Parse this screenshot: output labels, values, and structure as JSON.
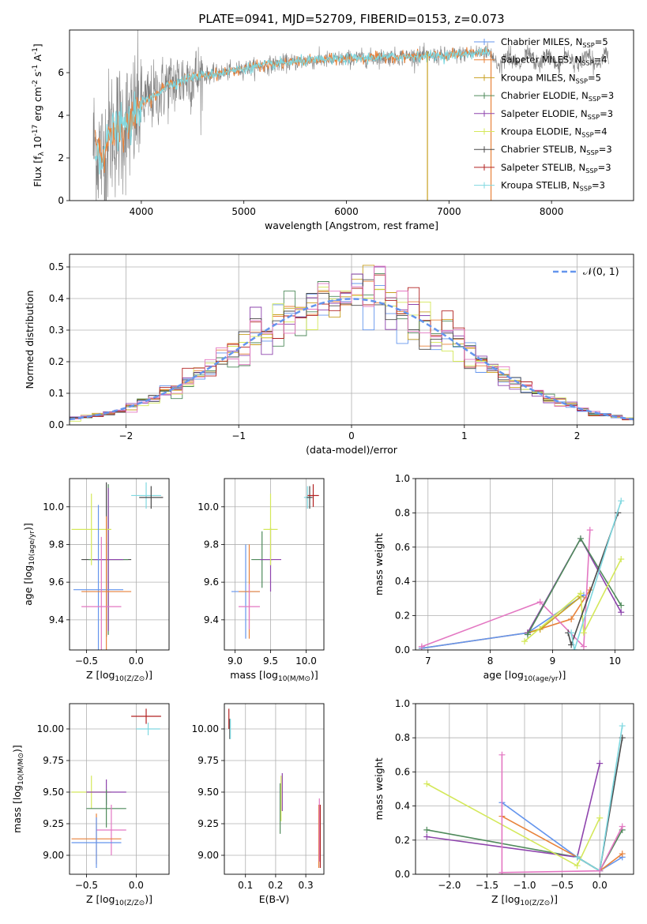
{
  "figure_title": "PLATE=0941, MJD=52709, FIBERID=0153, z=0.073",
  "colors": {
    "chabrier_miles": "#6495ed",
    "salpeter_miles": "#e8823a",
    "kroupa_miles": "#c8a020",
    "chabrier_elodie": "#4f8a5b",
    "salpeter_elodie": "#8e44ad",
    "kroupa_elodie": "#d4e85a",
    "chabrier_stelib": "#4a4a4a",
    "salpeter_stelib": "#b22222",
    "kroupa_stelib": "#7fd8e0",
    "pink": "#e377c2",
    "data_gray": "#808080",
    "normal_curve": "#6495ed",
    "grid": "#b0b0b0"
  },
  "chart_data": [
    {
      "id": "spectrum",
      "type": "line",
      "title": "PLATE=0941, MJD=52709, FIBERID=0153, z=0.073",
      "xlabel": "wavelength [Angstrom, rest frame]",
      "ylabel": "Flux [f_λ 10^-17 erg cm^-2 s^-1 A^-1]",
      "xlim": [
        3300,
        8800
      ],
      "ylim": [
        0,
        8
      ],
      "xticks": [
        "4000",
        "5000",
        "6000",
        "7000",
        "8000"
      ],
      "yticks": [
        "0",
        "2",
        "4",
        "6"
      ],
      "grid": false,
      "legend": "top-right",
      "legend_entries": [
        "Chabrier MILES, N_SSP=5",
        "Salpeter MILES, N_SSP=4",
        "Kroupa MILES, N_SSP=5",
        "Chabrier ELODIE, N_SSP=3",
        "Salpeter ELODIE, N_SSP=3",
        "Kroupa ELODIE, N_SSP=4",
        "Chabrier STELIB, N_SSP=3",
        "Salpeter STELIB, N_SSP=3",
        "Kroupa STELIB, N_SSP=3"
      ],
      "model_continuum": [
        [
          3550,
          2.6
        ],
        [
          3620,
          2.0
        ],
        [
          3700,
          3.2
        ],
        [
          3800,
          3.5
        ],
        [
          3900,
          3.6
        ],
        [
          4000,
          4.6
        ],
        [
          4100,
          4.8
        ],
        [
          4250,
          5.4
        ],
        [
          4500,
          5.8
        ],
        [
          4800,
          6.0
        ],
        [
          5000,
          6.2
        ],
        [
          5300,
          6.4
        ],
        [
          5600,
          6.55
        ],
        [
          6000,
          6.65
        ],
        [
          6500,
          6.75
        ],
        [
          7000,
          6.8
        ],
        [
          7400,
          7.0
        ]
      ],
      "data_noise_range": [
        3530,
        8560
      ],
      "dropouts": [
        6790,
        7410
      ]
    },
    {
      "id": "residuals",
      "type": "line",
      "xlabel": "(data-model)/error",
      "ylabel": "Normed distribution",
      "xlim": [
        -2.5,
        2.5
      ],
      "ylim": [
        0,
        0.54
      ],
      "xticks": [
        "−2",
        "−1",
        "0",
        "1",
        "2"
      ],
      "yticks": [
        "0.0",
        "0.1",
        "0.2",
        "0.3",
        "0.4",
        "0.5"
      ],
      "grid": true,
      "legend": "top-right",
      "legend_entries": [
        "𝒩(0, 1)"
      ],
      "bin_width": 0.1
    },
    {
      "id": "age_vs_Z",
      "type": "scatter",
      "xlabel": "Z [log10(Z/Z⊙)]",
      "ylabel": "age [log10(age/yr)]",
      "xlim": [
        -0.67,
        0.33
      ],
      "ylim": [
        9.24,
        10.15
      ],
      "xticks": [
        "−0.5",
        "0.0"
      ],
      "yticks": [
        "9.4",
        "9.6",
        "9.8",
        "10.0"
      ],
      "grid": true,
      "points": [
        {
          "x": 0.1,
          "y": 10.06,
          "xerr": 0.15,
          "yerr": 0.07,
          "color": "#7fd8e0"
        },
        {
          "x": 0.15,
          "y": 10.05,
          "xerr": 0.12,
          "yerr": 0.06,
          "color": "#4a4a4a"
        },
        {
          "x": -0.3,
          "y": 9.72,
          "xerr": 0.25,
          "yerr": 0.41,
          "color": "#4a4a4a"
        },
        {
          "x": -0.28,
          "y": 9.72,
          "xerr": 0.2,
          "yerr": 0.4,
          "color": "#4f8a5b"
        },
        {
          "x": -0.28,
          "y": 9.72,
          "xerr": 0.15,
          "yerr": 0.38,
          "color": "#8e44ad"
        },
        {
          "x": -0.45,
          "y": 9.88,
          "xerr": 0.2,
          "yerr": 0.19,
          "color": "#d4e85a"
        },
        {
          "x": -0.38,
          "y": 9.56,
          "xerr": 0.25,
          "yerr": 0.45,
          "color": "#6495ed"
        },
        {
          "x": -0.3,
          "y": 9.55,
          "xerr": 0.25,
          "yerr": 0.4,
          "color": "#e8823a"
        },
        {
          "x": -0.35,
          "y": 9.47,
          "xerr": 0.2,
          "yerr": 0.37,
          "color": "#e377c2"
        }
      ]
    },
    {
      "id": "age_vs_mass",
      "type": "scatter",
      "xlabel": "mass [log10(M/M⊙)]",
      "xlim": [
        8.85,
        10.25
      ],
      "ylim": [
        9.24,
        10.15
      ],
      "xticks": [
        "9.0",
        "9.5",
        "10.0"
      ],
      "yticks": [
        "9.4",
        "9.6",
        "9.8",
        "10.0"
      ],
      "grid": true,
      "points": [
        {
          "x": 10.02,
          "y": 10.05,
          "xerr": 0.05,
          "yerr": 0.06,
          "color": "#7fd8e0"
        },
        {
          "x": 10.05,
          "y": 10.05,
          "xerr": 0.04,
          "yerr": 0.06,
          "color": "#4a4a4a"
        },
        {
          "x": 10.1,
          "y": 10.06,
          "xerr": 0.08,
          "yerr": 0.06,
          "color": "#b22222"
        },
        {
          "x": 9.38,
          "y": 9.72,
          "xerr": 0.15,
          "yerr": 0.15,
          "color": "#4f8a5b"
        },
        {
          "x": 9.5,
          "y": 9.72,
          "xerr": 0.15,
          "yerr": 0.17,
          "color": "#8e44ad"
        },
        {
          "x": 9.5,
          "y": 9.88,
          "xerr": 0.1,
          "yerr": 0.19,
          "color": "#d4e85a"
        },
        {
          "x": 9.15,
          "y": 9.55,
          "xerr": 0.2,
          "yerr": 0.25,
          "color": "#6495ed"
        },
        {
          "x": 9.2,
          "y": 9.55,
          "xerr": 0.15,
          "yerr": 0.25,
          "color": "#e8823a"
        },
        {
          "x": 9.2,
          "y": 9.47,
          "xerr": 0.15,
          "yerr": 0.12,
          "color": "#e377c2"
        }
      ]
    },
    {
      "id": "mass_weight_vs_age",
      "type": "line",
      "xlabel": "age [log10(age/yr)]",
      "ylabel": "mass weight",
      "xlim": [
        6.8,
        10.3
      ],
      "ylim": [
        0,
        1
      ],
      "xticks": [
        "7",
        "8",
        "9",
        "10"
      ],
      "yticks": [
        "0.0",
        "0.2",
        "0.4",
        "0.6",
        "0.8",
        "1.0"
      ],
      "grid": true,
      "series": [
        {
          "color": "#e8823a",
          "x": [
            6.9,
            8.6,
            9.3,
            9.6
          ],
          "y": [
            0.01,
            0.1,
            0.18,
            0.35
          ]
        },
        {
          "color": "#6495ed",
          "x": [
            6.9,
            8.6,
            9.5
          ],
          "y": [
            0.01,
            0.1,
            0.32
          ]
        },
        {
          "color": "#c8a020",
          "x": [
            8.6,
            8.8,
            9.45
          ],
          "y": [
            0.1,
            0.12,
            0.31
          ]
        },
        {
          "color": "#e377c2",
          "x": [
            6.9,
            8.8,
            9.5,
            9.6
          ],
          "y": [
            0.02,
            0.28,
            0.02,
            0.7
          ]
        },
        {
          "color": "#8e44ad",
          "x": [
            8.6,
            9.45,
            10.1
          ],
          "y": [
            0.1,
            0.65,
            0.22
          ]
        },
        {
          "color": "#4f8a5b",
          "x": [
            8.6,
            9.45,
            10.1
          ],
          "y": [
            0.09,
            0.65,
            0.26
          ]
        },
        {
          "color": "#d4e85a",
          "x": [
            8.55,
            9.45,
            9.5,
            10.1
          ],
          "y": [
            0.05,
            0.33,
            0.1,
            0.53
          ]
        },
        {
          "color": "#4a4a4a",
          "x": [
            9.25,
            9.3,
            10.05
          ],
          "y": [
            0.1,
            0.03,
            0.8
          ]
        },
        {
          "color": "#7fd8e0",
          "x": [
            9.3,
            9.35,
            10.1
          ],
          "y": [
            0.1,
            0.0,
            0.87
          ]
        }
      ]
    },
    {
      "id": "mass_vs_Z",
      "type": "scatter",
      "xlabel": "Z [log10(Z/Z⊙)]",
      "ylabel": "mass [log10(M/M⊙)]",
      "xlim": [
        -0.67,
        0.33
      ],
      "ylim": [
        8.85,
        10.2
      ],
      "xticks": [
        "−0.5",
        "0.0"
      ],
      "yticks": [
        "9.00",
        "9.25",
        "9.50",
        "9.75",
        "10.00"
      ],
      "grid": true,
      "points": [
        {
          "x": 0.1,
          "y": 10.1,
          "xerr": 0.15,
          "yerr": 0.06,
          "color": "#b22222"
        },
        {
          "x": 0.12,
          "y": 10.0,
          "xerr": 0.12,
          "yerr": 0.05,
          "color": "#7fd8e0"
        },
        {
          "x": -0.45,
          "y": 9.5,
          "xerr": 0.2,
          "yerr": 0.13,
          "color": "#d4e85a"
        },
        {
          "x": -0.3,
          "y": 9.5,
          "xerr": 0.2,
          "yerr": 0.1,
          "color": "#8e44ad"
        },
        {
          "x": -0.3,
          "y": 9.37,
          "xerr": 0.2,
          "yerr": 0.15,
          "color": "#4f8a5b"
        },
        {
          "x": -0.25,
          "y": 9.2,
          "xerr": 0.15,
          "yerr": 0.2,
          "color": "#e377c2"
        },
        {
          "x": -0.4,
          "y": 9.13,
          "xerr": 0.25,
          "yerr": 0.2,
          "color": "#e8823a"
        },
        {
          "x": -0.4,
          "y": 9.1,
          "xerr": 0.25,
          "yerr": 0.2,
          "color": "#6495ed"
        }
      ]
    },
    {
      "id": "mass_vs_ebv",
      "type": "scatter",
      "xlabel": "E(B-V)",
      "xlim": [
        0.03,
        0.36
      ],
      "ylim": [
        8.85,
        10.2
      ],
      "xticks": [
        "0.1",
        "0.2",
        "0.3"
      ],
      "yticks": [
        "9.00",
        "9.25",
        "9.50",
        "9.75",
        "10.00"
      ],
      "grid": true,
      "points": [
        {
          "x": 0.045,
          "y": 10.08,
          "yerr": 0.08,
          "color": "#b22222"
        },
        {
          "x": 0.048,
          "y": 10.0,
          "yerr": 0.08,
          "color": "#4a4a4a"
        },
        {
          "x": 0.05,
          "y": 10.0,
          "yerr": 0.08,
          "color": "#7fd8e0"
        },
        {
          "x": 0.215,
          "y": 9.37,
          "yerr": 0.2,
          "color": "#4f8a5b"
        },
        {
          "x": 0.218,
          "y": 9.45,
          "yerr": 0.18,
          "color": "#d4e85a"
        },
        {
          "x": 0.222,
          "y": 9.5,
          "yerr": 0.15,
          "color": "#8e44ad"
        },
        {
          "x": 0.343,
          "y": 9.15,
          "yerr": 0.25,
          "color": "#e8823a"
        },
        {
          "x": 0.345,
          "y": 9.2,
          "yerr": 0.25,
          "color": "#e377c2"
        },
        {
          "x": 0.348,
          "y": 9.15,
          "yerr": 0.25,
          "color": "#b22222"
        }
      ]
    },
    {
      "id": "mass_weight_vs_Z",
      "type": "line",
      "xlabel": "Z [log10(Z/Z⊙)]",
      "ylabel": "mass weight",
      "xlim": [
        -2.45,
        0.45
      ],
      "ylim": [
        0,
        1
      ],
      "xticks": [
        "−2.0",
        "−1.5",
        "−1.0",
        "−0.5",
        "0.0"
      ],
      "yticks": [
        "0.0",
        "0.2",
        "0.4",
        "0.6",
        "0.8",
        "1.0"
      ],
      "grid": true,
      "series": [
        {
          "color": "#6495ed",
          "x": [
            -1.3,
            -0.3,
            0.0,
            0.3
          ],
          "y": [
            0.42,
            0.1,
            0.02,
            0.1
          ]
        },
        {
          "color": "#e8823a",
          "x": [
            -1.3,
            -0.3,
            0.0,
            0.3
          ],
          "y": [
            0.34,
            0.1,
            0.02,
            0.12
          ]
        },
        {
          "color": "#4f8a5b",
          "x": [
            -2.3,
            -0.3,
            0.0,
            0.3
          ],
          "y": [
            0.26,
            0.1,
            0.02,
            0.26
          ]
        },
        {
          "color": "#8e44ad",
          "x": [
            -2.3,
            -0.3,
            0.0
          ],
          "y": [
            0.22,
            0.1,
            0.65
          ]
        },
        {
          "color": "#d4e85a",
          "x": [
            -2.3,
            -0.3,
            0.0
          ],
          "y": [
            0.53,
            0.05,
            0.33
          ]
        },
        {
          "color": "#4a4a4a",
          "x": [
            -0.3,
            0.0,
            0.3
          ],
          "y": [
            0.1,
            0.02,
            0.8
          ]
        },
        {
          "color": "#7fd8e0",
          "x": [
            -0.3,
            0.0,
            0.3
          ],
          "y": [
            0.1,
            0.02,
            0.87
          ]
        },
        {
          "color": "#e377c2",
          "x": [
            -1.3,
            0.0,
            0.3
          ],
          "y": [
            0.01,
            0.02,
            0.28
          ]
        },
        {
          "color": "#e377c2",
          "x": [
            -1.3,
            -1.3
          ],
          "y": [
            0.01,
            0.7
          ]
        }
      ]
    }
  ]
}
